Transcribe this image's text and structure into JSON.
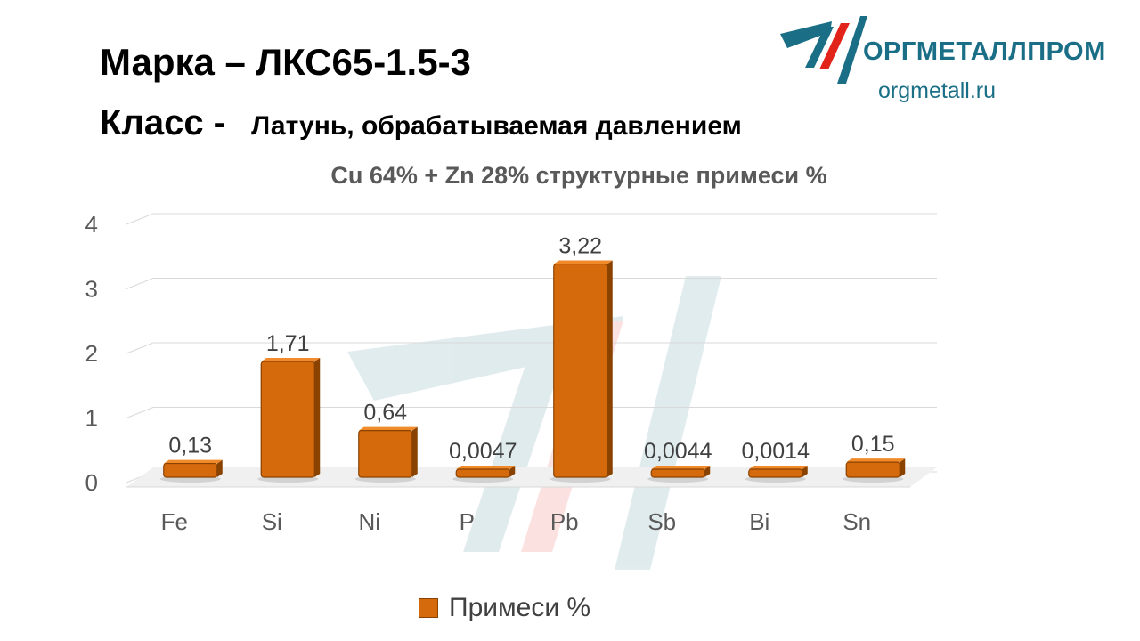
{
  "header": {
    "marka_prefix": "Марка – ",
    "marka_value": "ЛКС65-1.5-3",
    "klass_prefix": "Класс - ",
    "klass_value": "Латунь, обрабатываемая давлением"
  },
  "logo": {
    "name": "ОРГМЕТАЛЛПРОМ",
    "url": "orgmetall.ru",
    "color": "#1a6f86",
    "accent": "#e2231a"
  },
  "chart_data": {
    "type": "bar",
    "title": "Cu 64% + Zn 28% структурные примеси %",
    "xlabel": "",
    "ylabel": "",
    "ylim": [
      0,
      4
    ],
    "yticks": [
      "0",
      "1",
      "2",
      "3",
      "4"
    ],
    "grid": true,
    "legend_position": "bottom",
    "categories": [
      "Fe",
      "Si",
      "Ni",
      "P",
      "Pb",
      "Sb",
      "Bi",
      "Sn"
    ],
    "series": [
      {
        "name": "Примеси %",
        "color": "#d46a0c",
        "values": [
          0.13,
          1.71,
          0.64,
          0.0047,
          3.22,
          0.0044,
          0.0014,
          0.15
        ],
        "labels": [
          "0,13",
          "1,71",
          "0,64",
          "0,0047",
          "3,22",
          "0,0044",
          "0,0014",
          "0,15"
        ]
      }
    ]
  }
}
